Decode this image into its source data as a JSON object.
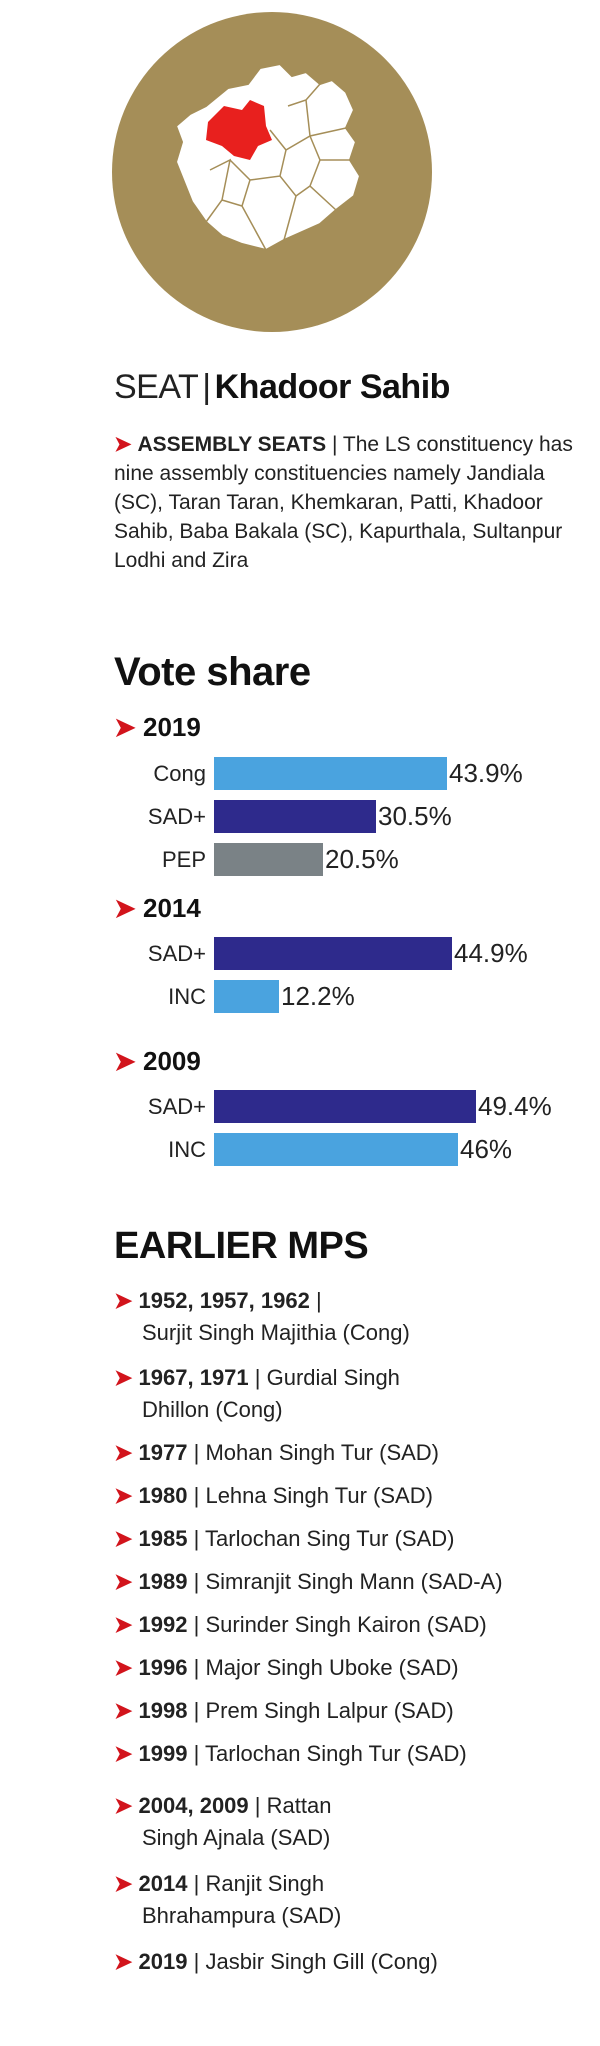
{
  "colors": {
    "map_circle": "#a58e58",
    "map_highlight": "#e8201e",
    "map_land": "#ffffff",
    "arrow": "#d2141c"
  },
  "map": {
    "icon": "punjab-map-icon"
  },
  "seat": {
    "label": "SEAT",
    "separator": "|",
    "name": "Khadoor Sahib"
  },
  "assembly": {
    "arrow": "➤",
    "heading": "ASSEMBLY SEATS",
    "text": "| The LS constituency has nine assembly constituencies namely Jandiala (SC), Taran Taran, Khemkaran, Patti, Khadoor Sahib, Baba Bakala (SC), Kapurthala, Sultanpur Lodhi and Zira"
  },
  "chart_data": {
    "type": "bar",
    "title": "Vote share",
    "xlim": [
      0,
      50
    ],
    "groups": [
      {
        "year": "2019",
        "bars": [
          {
            "party": "Cong",
            "value": 43.9,
            "label": "43.9%",
            "color": "#4aa3df"
          },
          {
            "party": "SAD+",
            "value": 30.5,
            "label": "30.5%",
            "color": "#2e2a8c"
          },
          {
            "party": "PEP",
            "value": 20.5,
            "label": "20.5%",
            "color": "#7a8286"
          }
        ]
      },
      {
        "year": "2014",
        "bars": [
          {
            "party": "SAD+",
            "value": 44.9,
            "label": "44.9%",
            "color": "#2e2a8c"
          },
          {
            "party": "INC",
            "value": 12.2,
            "label": "12.2%",
            "color": "#4aa3df"
          }
        ]
      },
      {
        "year": "2009",
        "bars": [
          {
            "party": "SAD+",
            "value": 49.4,
            "label": "49.4%",
            "color": "#2e2a8c"
          },
          {
            "party": "INC",
            "value": 46,
            "label": "46%",
            "color": "#4aa3df"
          }
        ]
      }
    ]
  },
  "earlier_mps": {
    "title": "EARLIER MPS",
    "items": [
      {
        "years": "1952, 1957, 1962",
        "sep": "|",
        "line1": "",
        "line2": "Surjit Singh Majithia (Cong)"
      },
      {
        "years": "1967, 1971",
        "sep": "|",
        "line1": "Gurdial Singh",
        "line2": "Dhillon (Cong)"
      },
      {
        "years": "1977",
        "sep": "|",
        "line1": "Mohan Singh Tur (SAD)",
        "line2": ""
      },
      {
        "years": "1980",
        "sep": "|",
        "line1": "Lehna Singh Tur (SAD)",
        "line2": ""
      },
      {
        "years": "1985",
        "sep": "|",
        "line1": "Tarlochan Sing Tur (SAD)",
        "line2": ""
      },
      {
        "years": "1989",
        "sep": "|",
        "line1": "Simranjit Singh Mann (SAD-A)",
        "line2": ""
      },
      {
        "years": "1992",
        "sep": "|",
        "line1": "Surinder Singh Kairon (SAD)",
        "line2": ""
      },
      {
        "years": "1996",
        "sep": "|",
        "line1": "Major Singh Uboke (SAD)",
        "line2": ""
      },
      {
        "years": "1998",
        "sep": "|",
        "line1": "Prem Singh Lalpur (SAD)",
        "line2": ""
      },
      {
        "years": "1999",
        "sep": "|",
        "line1": "Tarlochan Singh Tur (SAD)",
        "line2": ""
      },
      {
        "years": "2004, 2009",
        "sep": "|",
        "line1": "Rattan",
        "line2": "Singh Ajnala (SAD)"
      },
      {
        "years": "2014",
        "sep": "|",
        "line1": "Ranjit Singh",
        "line2": "Bhrahampura (SAD)"
      },
      {
        "years": "2019",
        "sep": "|",
        "line1": "Jasbir Singh Gill (Cong)",
        "line2": ""
      }
    ]
  }
}
